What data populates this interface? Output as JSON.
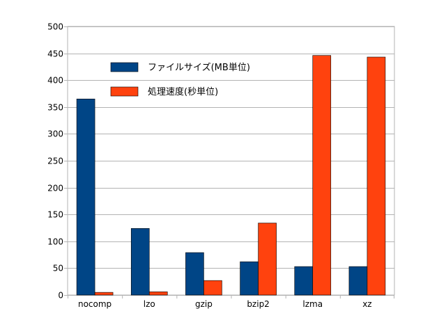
{
  "chart_data": {
    "type": "bar",
    "categories": [
      "nocomp",
      "lzo",
      "gzip",
      "bzip2",
      "lzma",
      "xz"
    ],
    "series": [
      {
        "name": "ファイルサイズ(MB単位)",
        "values": [
          365,
          124,
          79,
          62,
          53,
          53
        ],
        "color": "#004586"
      },
      {
        "name": "処理速度(秒単位)",
        "values": [
          5,
          6,
          27,
          134,
          446,
          443
        ],
        "color": "#ff420e"
      }
    ],
    "ylim": [
      0,
      500
    ],
    "yticks": [
      0,
      50,
      100,
      150,
      200,
      250,
      300,
      350,
      400,
      450,
      500
    ],
    "grid": true,
    "legend_position": "top-left-inside",
    "title": "",
    "xlabel": "",
    "ylabel": ""
  }
}
